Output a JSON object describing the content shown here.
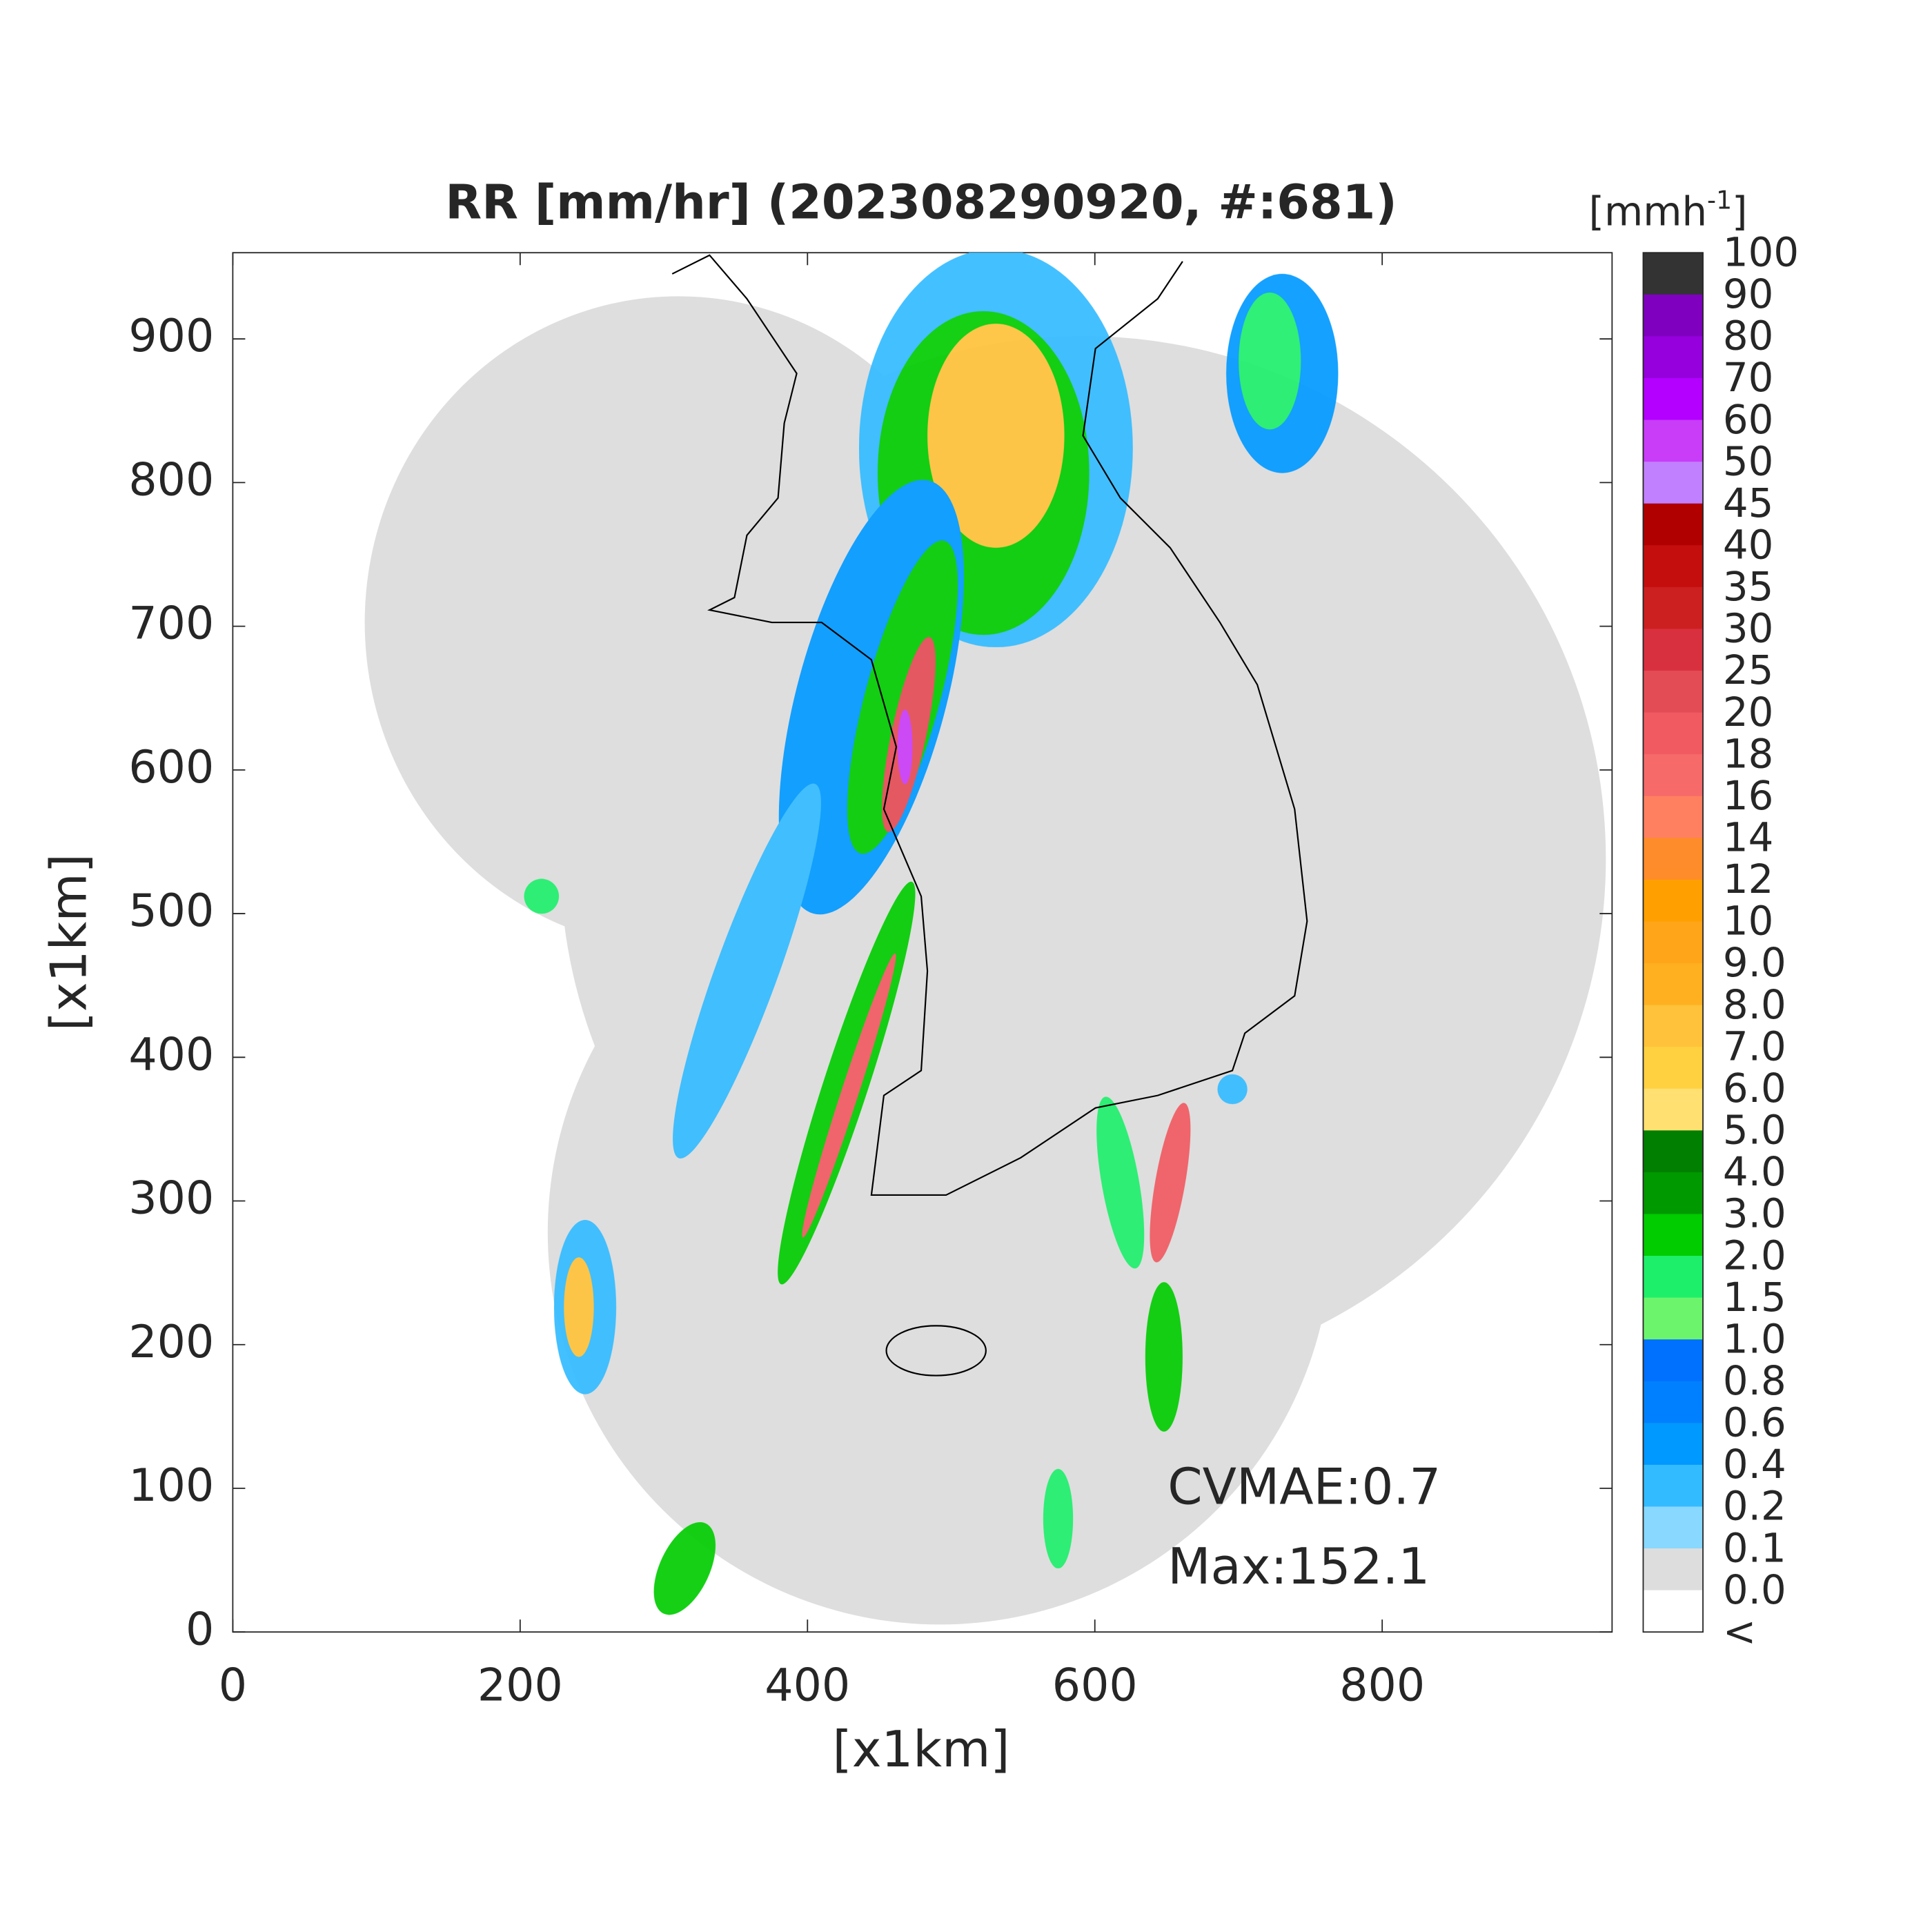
{
  "title": "RR [mm/hr] (202308290920, #:681)",
  "x_axis": {
    "label": "[x1km]",
    "lim": [
      0,
      960
    ],
    "ticks": [
      0,
      200,
      400,
      600,
      800
    ]
  },
  "y_axis": {
    "label": "[x1km]",
    "lim": [
      0,
      960
    ],
    "ticks": [
      0,
      100,
      200,
      300,
      400,
      500,
      600,
      700,
      800,
      900
    ]
  },
  "colorbar": {
    "unit": [
      "[mmh",
      "-1",
      "]"
    ],
    "labels": [
      "100",
      "90",
      "80",
      "70",
      "60",
      "50",
      "45",
      "40",
      "35",
      "30",
      "25",
      "20",
      "18",
      "16",
      "14",
      "12",
      "10",
      "9.0",
      "8.0",
      "7.0",
      "6.0",
      "5.0",
      "4.0",
      "3.0",
      "2.0",
      "1.5",
      "1.0",
      "0.8",
      "0.6",
      "0.4",
      "0.2",
      "0.1",
      "0.0",
      "<"
    ],
    "colors": [
      "#333333",
      "#7f00bf",
      "#9500dd",
      "#b300ff",
      "#c93cf8",
      "#c080ff",
      "#b00000",
      "#c40e0e",
      "#cc2020",
      "#d93040",
      "#e44c55",
      "#f05a60",
      "#f66a6a",
      "#ff8060",
      "#ff8c2a",
      "#ffa000",
      "#ffa51a",
      "#ffb020",
      "#ffc23a",
      "#ffd040",
      "#ffe070",
      "#007f00",
      "#009900",
      "#00cc00",
      "#1eef6b",
      "#6cf56c",
      "#0070ff",
      "#0080ff",
      "#0099ff",
      "#33bbff",
      "#88d8ff",
      "#dddddd",
      "#ffffff"
    ]
  },
  "annotations": [
    "CVMAE:0.7",
    "Max:152.1"
  ]
}
